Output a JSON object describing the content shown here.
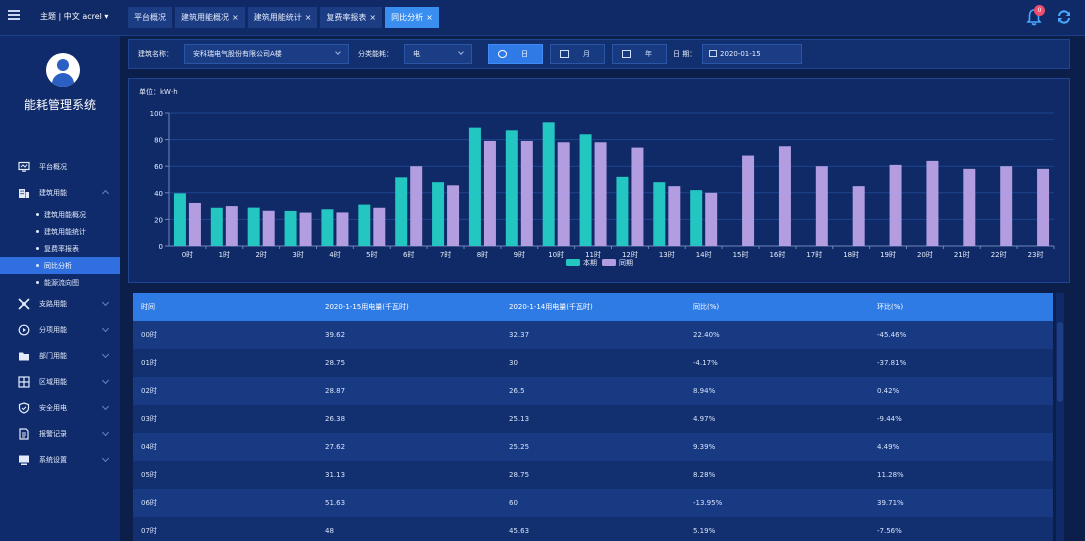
{
  "header": {
    "menu_icon": "hamburger-icon",
    "theme_label": "主题 | 中文  acrel ▾",
    "tabs": [
      {
        "label": "平台概况",
        "closable": false
      },
      {
        "label": "建筑用能概况",
        "closable": true
      },
      {
        "label": "建筑用能统计",
        "closable": true
      },
      {
        "label": "复费率报表",
        "closable": true
      },
      {
        "label": "同比分析",
        "closable": true
      }
    ],
    "notification_count": "0"
  },
  "sidebar": {
    "system_name": "能耗管理系统",
    "items": [
      {
        "label": "平台概况",
        "icon": "monitor-icon",
        "chevron": ""
      },
      {
        "label": "建筑用能",
        "icon": "building-icon",
        "chevron": "up"
      },
      {
        "label": "支路用能",
        "icon": "branch-icon",
        "chevron": "down"
      },
      {
        "label": "分项用能",
        "icon": "clock-icon",
        "chevron": "down"
      },
      {
        "label": "部门用能",
        "icon": "folder-icon",
        "chevron": "down"
      },
      {
        "label": "区域用能",
        "icon": "grid-icon",
        "chevron": "down"
      },
      {
        "label": "安全用电",
        "icon": "shield-icon",
        "chevron": "down"
      },
      {
        "label": "报警记录",
        "icon": "document-icon",
        "chevron": "down"
      },
      {
        "label": "系统设置",
        "icon": "settings-icon",
        "chevron": "down"
      }
    ],
    "sub_items": [
      "建筑用能概况",
      "建筑用能统计",
      "复费率报表",
      "同比分析",
      "能源流向图"
    ],
    "active_sub": "同比分析"
  },
  "filters": {
    "building_label": "建筑名称：",
    "building_value": "安科瑞电气股份有限公司A楼",
    "category_label": "分类能耗：",
    "category_value": "电",
    "day_label": "日",
    "month_label": "月",
    "year_label": "年",
    "date_label": "日 期：",
    "date_value": "2020-01-15"
  },
  "chart_data": {
    "type": "bar",
    "unit_label": "单位：kW·h",
    "categories": [
      "0时",
      "1时",
      "2时",
      "3时",
      "4时",
      "5时",
      "6时",
      "7时",
      "8时",
      "9时",
      "10时",
      "11时",
      "12时",
      "13时",
      "14时",
      "15时",
      "16时",
      "17时",
      "18时",
      "19时",
      "20时",
      "21时",
      "22时",
      "23时"
    ],
    "series": [
      {
        "name": "本期",
        "color": "#23c6c1",
        "values": [
          39.62,
          28.75,
          28.87,
          26.38,
          27.62,
          31.13,
          51.63,
          48,
          89,
          87,
          93,
          84,
          52,
          48,
          42,
          null,
          null,
          null,
          null,
          null,
          null,
          null,
          null,
          null
        ]
      },
      {
        "name": "同期",
        "color": "#b19de0",
        "values": [
          32.37,
          30,
          26.5,
          25.13,
          25.25,
          28.75,
          60,
          45.63,
          79,
          79,
          78,
          78,
          74,
          45,
          40,
          68,
          75,
          60,
          45,
          61,
          64,
          58,
          60,
          58
        ]
      }
    ],
    "ylim": [
      0,
      100
    ],
    "yticks": [
      0,
      20,
      40,
      60,
      80,
      100
    ],
    "grid": true,
    "legend": "bottom-center"
  },
  "table": {
    "headers": [
      "时间",
      "2020-1-15用电量(千瓦时)",
      "2020-1-14用电量(千瓦时)",
      "同比(%)",
      "环比(%)"
    ],
    "rows": [
      [
        "00时",
        "39.62",
        "32.37",
        "22.40%",
        "-45.46%"
      ],
      [
        "01时",
        "28.75",
        "30",
        "-4.17%",
        "-37.81%"
      ],
      [
        "02时",
        "28.87",
        "26.5",
        "8.94%",
        "0.42%"
      ],
      [
        "03时",
        "26.38",
        "25.13",
        "4.97%",
        "-9.44%"
      ],
      [
        "04时",
        "27.62",
        "25.25",
        "9.39%",
        "4.49%"
      ],
      [
        "05时",
        "31.13",
        "28.75",
        "8.28%",
        "11.28%"
      ],
      [
        "06时",
        "51.63",
        "60",
        "-13.95%",
        "39.71%"
      ],
      [
        "07时",
        "48",
        "45.63",
        "5.19%",
        "-7.56%"
      ]
    ]
  }
}
